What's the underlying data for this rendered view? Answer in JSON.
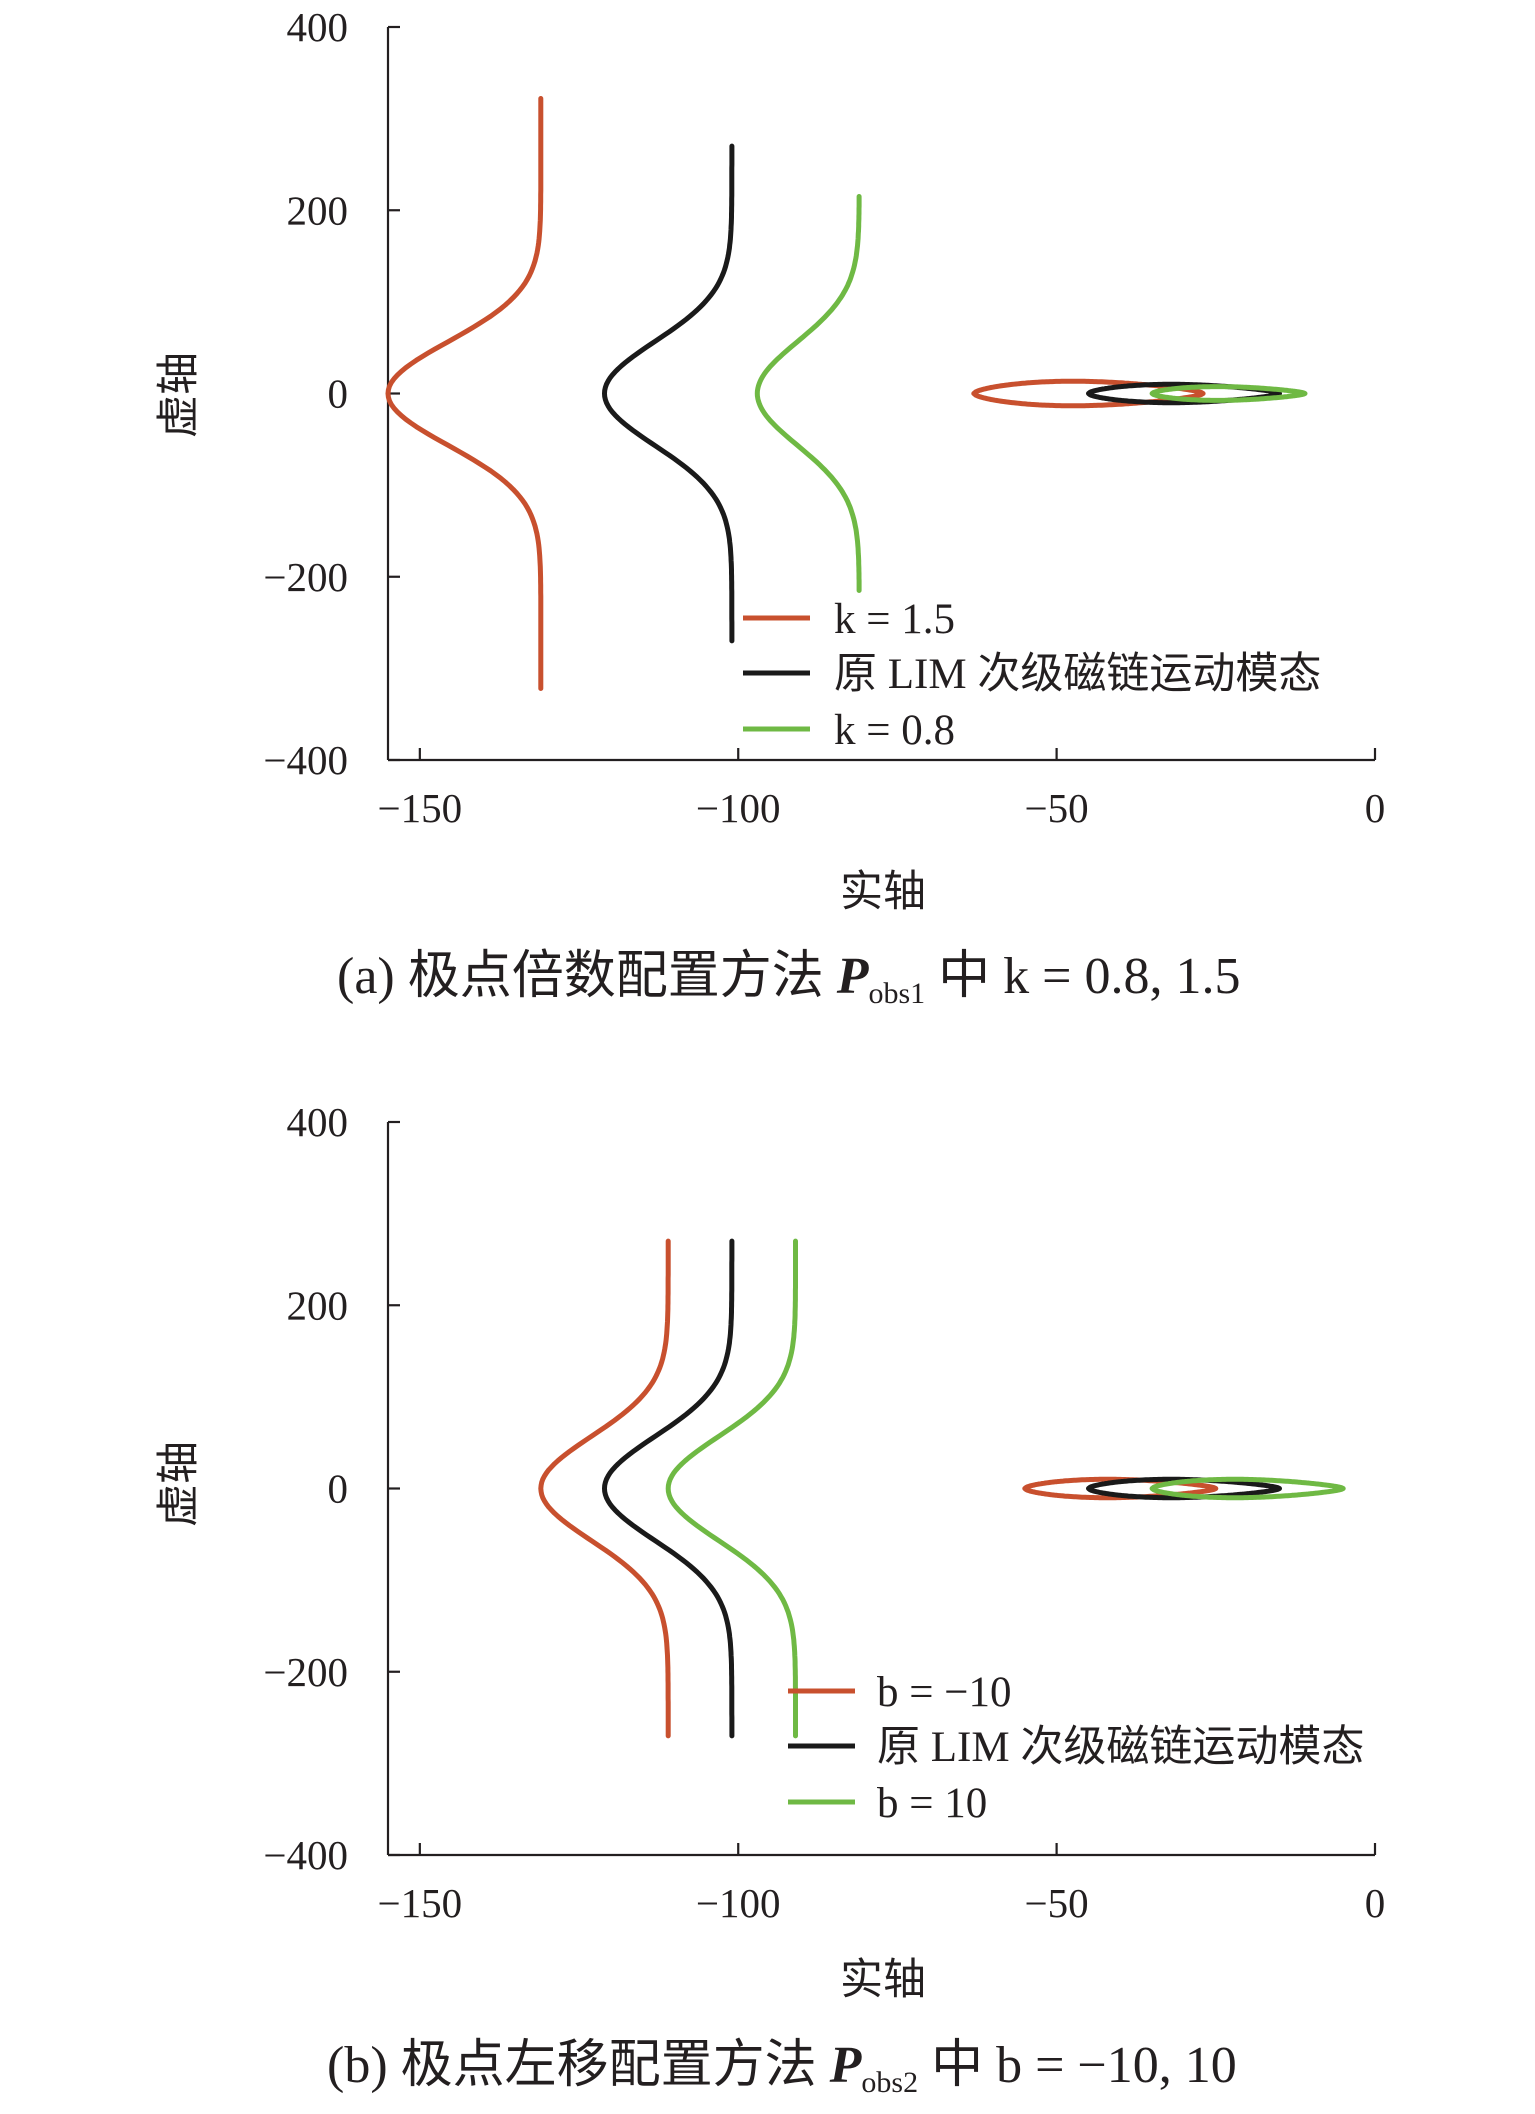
{
  "colors": {
    "red": "#c8502e",
    "black": "#1a1a1a",
    "green": "#6fb944",
    "axis": "#231f20"
  },
  "chart_data": [
    {
      "type": "line",
      "xlabel": "实轴",
      "ylabel": "虚轴",
      "xlim": [
        -155,
        0
      ],
      "ylim": [
        -400,
        400
      ],
      "xticks": [
        "−150",
        "−100",
        "−50",
        "0"
      ],
      "yticks": [
        "400",
        "200",
        "0",
        "−200",
        "−400"
      ],
      "caption": {
        "prefix": "(a) 极点倍数配置方法 ",
        "symbol": "P",
        "subscript": "obs1",
        "suffix": " 中 k = 0.8, 1.5"
      },
      "legend_placement": "bottom-right",
      "series": [
        {
          "name": "k = 1.5",
          "color": "red",
          "slow": {
            "vertex": -155,
            "asymptote": -131,
            "ymax": 322
          },
          "fast": {
            "x1": -63,
            "x2": -27,
            "amp": 16
          }
        },
        {
          "name": "原 LIM 次级磁链运动模态",
          "color": "black",
          "slow": {
            "vertex": -121,
            "asymptote": -101,
            "ymax": 270
          },
          "fast": {
            "x1": -45,
            "x2": -15,
            "amp": 12
          }
        },
        {
          "name": "k = 0.8",
          "color": "green",
          "slow": {
            "vertex": -97,
            "asymptote": -81,
            "ymax": 215
          },
          "fast": {
            "x1": -35,
            "x2": -11,
            "amp": 9
          }
        }
      ]
    },
    {
      "type": "line",
      "xlabel": "实轴",
      "ylabel": "虚轴",
      "xlim": [
        -155,
        0
      ],
      "ylim": [
        -400,
        400
      ],
      "xticks": [
        "−150",
        "−100",
        "−50",
        "0"
      ],
      "yticks": [
        "400",
        "200",
        "0",
        "−200",
        "−400"
      ],
      "caption": {
        "prefix": "(b) 极点左移配置方法 ",
        "symbol": "P",
        "subscript": "obs2",
        "suffix": " 中 b = −10, 10"
      },
      "legend_placement": "bottom-right",
      "series": [
        {
          "name": "b = −10",
          "color": "red",
          "slow": {
            "vertex": -131,
            "asymptote": -111,
            "ymax": 270
          },
          "fast": {
            "x1": -55,
            "x2": -25,
            "amp": 12
          }
        },
        {
          "name": "原 LIM 次级磁链运动模态",
          "color": "black",
          "slow": {
            "vertex": -121,
            "asymptote": -101,
            "ymax": 270
          },
          "fast": {
            "x1": -45,
            "x2": -15,
            "amp": 12
          }
        },
        {
          "name": "b = 10",
          "color": "green",
          "slow": {
            "vertex": -111,
            "asymptote": -91,
            "ymax": 270
          },
          "fast": {
            "x1": -35,
            "x2": -5,
            "amp": 12
          }
        }
      ]
    }
  ]
}
